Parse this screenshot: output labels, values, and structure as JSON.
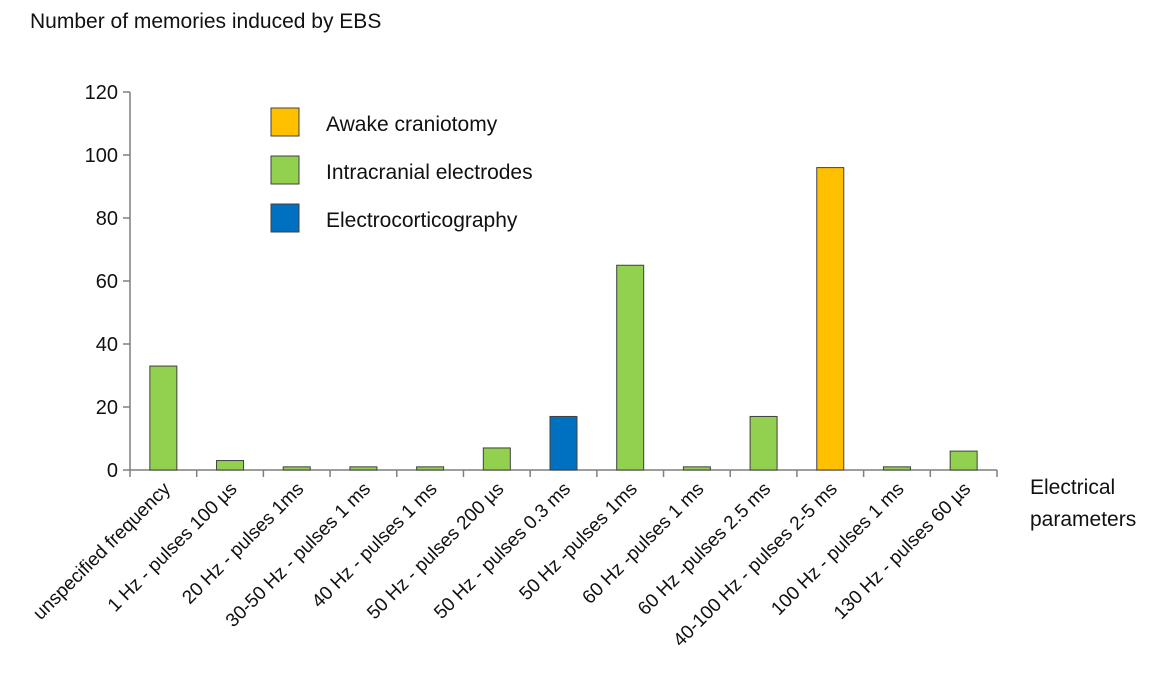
{
  "chart_data": {
    "type": "bar",
    "title": "",
    "ylabel": "Number of memories induced by EBS",
    "xlabel": "Electrical parameters",
    "ylim": [
      0,
      120
    ],
    "yticks": [
      0,
      20,
      40,
      60,
      80,
      100,
      120
    ],
    "grid": false,
    "legend_position": "top-center",
    "categories": [
      "unspecified frequency",
      "1 Hz - pulses 100 µs",
      "20 Hz - pulses 1ms",
      "30-50 Hz - pulses 1 ms",
      "40 Hz - pulses 1 ms",
      "50 Hz - pulses 200 µs",
      "50 Hz - pulses 0.3 ms",
      "50 Hz -pulses 1ms",
      "60 Hz -pulses 1 ms",
      "60 Hz -pulses 2.5 ms",
      "40-100 Hz - pulses 2-5 ms",
      "100 Hz - pulses 1 ms",
      "130 Hz - pulses 60 µs"
    ],
    "series": [
      {
        "name": "Awake craniotomy",
        "color": "#FFC000",
        "values": [
          0,
          0,
          0,
          0,
          0,
          0,
          0,
          0,
          0,
          0,
          96,
          0,
          0
        ]
      },
      {
        "name": "Intracranial electrodes",
        "color": "#92D050",
        "values": [
          33,
          3,
          1,
          1,
          1,
          7,
          0,
          65,
          1,
          17,
          0,
          1,
          6
        ]
      },
      {
        "name": "Electrocorticography",
        "color": "#0070C0",
        "values": [
          0,
          0,
          0,
          0,
          0,
          0,
          17,
          0,
          0,
          0,
          0,
          0,
          0
        ]
      }
    ]
  }
}
